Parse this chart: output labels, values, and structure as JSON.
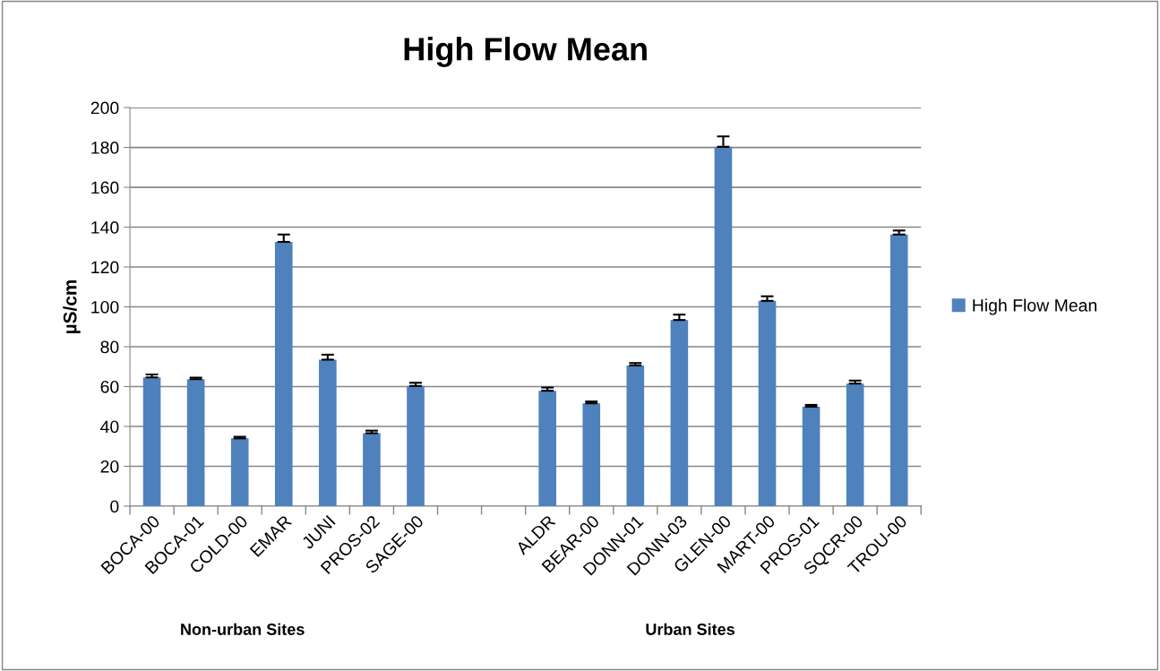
{
  "chart_data": {
    "type": "bar",
    "title": "High Flow Mean",
    "ylabel": "µS/cm",
    "categories": [
      "BOCA-00",
      "BOCA-01",
      "COLD-00",
      "EMAR",
      "JUNI",
      "PROS-02",
      "SAGE-00",
      null,
      null,
      "ALDR",
      "BEAR-00",
      "DONN-01",
      "DONN-03",
      "GLEN-00",
      "MART-00",
      "PROS-01",
      "SQCR-00",
      "TROU-00"
    ],
    "series": [
      {
        "name": "High Flow Mean",
        "color": "#4f81bd",
        "values": [
          64.6,
          63.7,
          34.0,
          132.6,
          73.5,
          36.6,
          60.3,
          null,
          null,
          57.9,
          51.6,
          70.6,
          93.4,
          180.3,
          103.0,
          49.9,
          61.5,
          136.3
        ],
        "errors": [
          [
            64.6,
            66.1
          ],
          [
            63.7,
            64.5
          ],
          [
            34.0,
            34.8
          ],
          [
            132.6,
            136.3
          ],
          [
            73.5,
            76.0
          ],
          [
            36.6,
            37.9
          ],
          [
            60.3,
            61.9
          ],
          null,
          null,
          [
            57.9,
            59.5
          ],
          [
            51.6,
            52.5
          ],
          [
            70.6,
            71.8
          ],
          [
            93.4,
            96.1
          ],
          [
            180.3,
            185.5
          ],
          [
            103.0,
            105.3
          ],
          [
            49.9,
            50.8
          ],
          [
            61.5,
            63.0
          ],
          [
            136.3,
            138.3
          ]
        ]
      }
    ],
    "ylim": [
      0,
      200
    ],
    "yticks": [
      0,
      20,
      40,
      60,
      80,
      100,
      120,
      140,
      160,
      180,
      200
    ],
    "grid": "y",
    "legend": "right",
    "annotations": [
      "Non-urban Sites",
      "Urban Sites"
    ]
  }
}
